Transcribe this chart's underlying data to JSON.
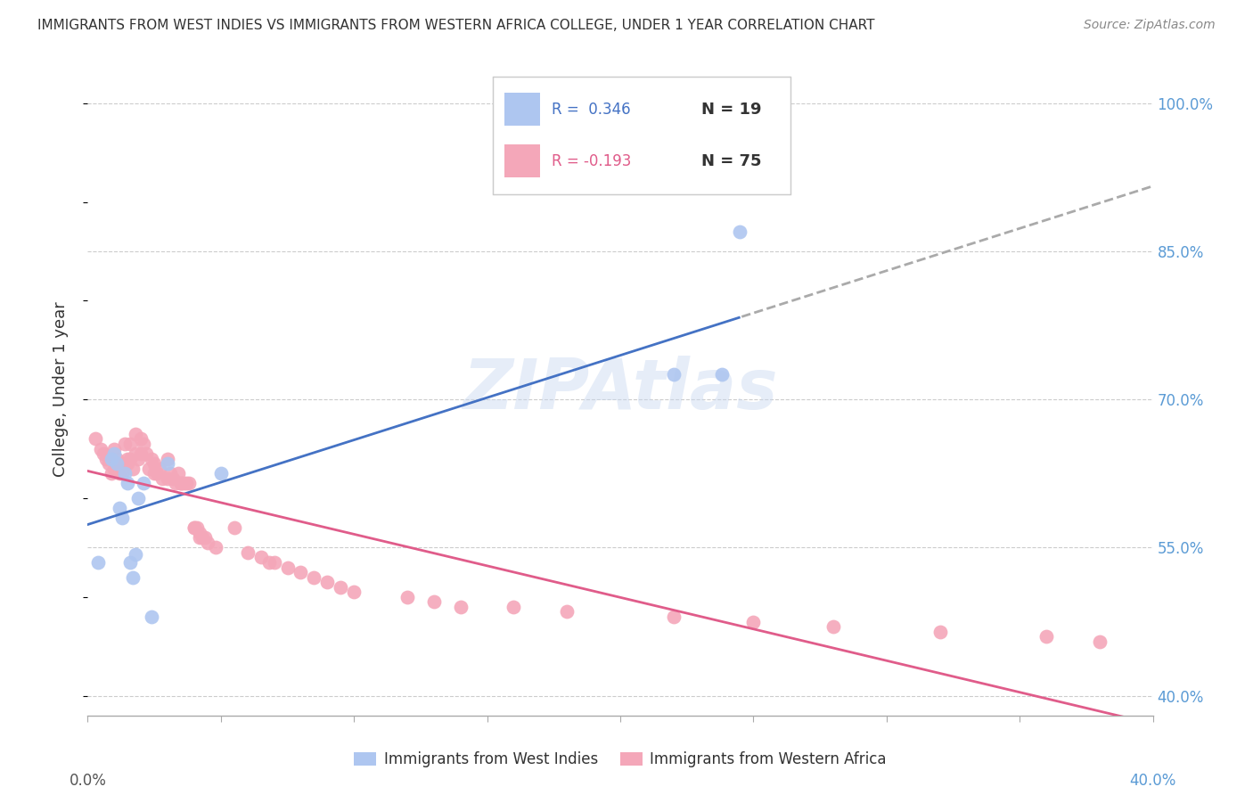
{
  "title": "IMMIGRANTS FROM WEST INDIES VS IMMIGRANTS FROM WESTERN AFRICA COLLEGE, UNDER 1 YEAR CORRELATION CHART",
  "source": "Source: ZipAtlas.com",
  "ylabel": "College, Under 1 year",
  "ylabel_right_ticks": [
    "100.0%",
    "85.0%",
    "70.0%",
    "55.0%",
    "40.0%"
  ],
  "ylabel_right_values": [
    1.0,
    0.85,
    0.7,
    0.55,
    0.4
  ],
  "xmin": 0.0,
  "xmax": 0.4,
  "ymin": 0.38,
  "ymax": 1.04,
  "legend_blue_r": "R =  0.346",
  "legend_blue_n": "N = 19",
  "legend_pink_r": "R = -0.193",
  "legend_pink_n": "N = 75",
  "legend_label_blue": "Immigrants from West Indies",
  "legend_label_pink": "Immigrants from Western Africa",
  "blue_color": "#aec6f0",
  "pink_color": "#f4a7b9",
  "blue_line_color": "#4472c4",
  "pink_line_color": "#e05c8a",
  "west_indies_x": [
    0.004,
    0.009,
    0.01,
    0.011,
    0.012,
    0.013,
    0.014,
    0.015,
    0.016,
    0.017,
    0.018,
    0.019,
    0.021,
    0.024,
    0.03,
    0.05,
    0.22,
    0.238,
    0.245
  ],
  "west_indies_y": [
    0.535,
    0.64,
    0.645,
    0.635,
    0.59,
    0.58,
    0.625,
    0.615,
    0.535,
    0.52,
    0.543,
    0.6,
    0.615,
    0.48,
    0.635,
    0.625,
    0.725,
    0.725,
    0.87
  ],
  "western_africa_x": [
    0.003,
    0.005,
    0.006,
    0.007,
    0.008,
    0.009,
    0.01,
    0.01,
    0.011,
    0.012,
    0.012,
    0.013,
    0.013,
    0.014,
    0.015,
    0.015,
    0.016,
    0.016,
    0.017,
    0.018,
    0.018,
    0.019,
    0.02,
    0.02,
    0.021,
    0.022,
    0.023,
    0.024,
    0.025,
    0.025,
    0.026,
    0.027,
    0.028,
    0.03,
    0.03,
    0.031,
    0.032,
    0.033,
    0.034,
    0.035,
    0.035,
    0.036,
    0.037,
    0.038,
    0.04,
    0.04,
    0.041,
    0.042,
    0.042,
    0.043,
    0.044,
    0.045,
    0.048,
    0.055,
    0.06,
    0.065,
    0.068,
    0.07,
    0.075,
    0.08,
    0.085,
    0.09,
    0.095,
    0.1,
    0.12,
    0.13,
    0.14,
    0.16,
    0.18,
    0.22,
    0.25,
    0.28,
    0.32,
    0.36,
    0.38
  ],
  "western_africa_y": [
    0.66,
    0.65,
    0.645,
    0.64,
    0.635,
    0.625,
    0.65,
    0.63,
    0.64,
    0.63,
    0.625,
    0.635,
    0.625,
    0.655,
    0.64,
    0.635,
    0.655,
    0.64,
    0.63,
    0.665,
    0.645,
    0.64,
    0.66,
    0.645,
    0.655,
    0.645,
    0.63,
    0.64,
    0.635,
    0.625,
    0.625,
    0.63,
    0.62,
    0.64,
    0.62,
    0.625,
    0.62,
    0.615,
    0.625,
    0.615,
    0.615,
    0.615,
    0.615,
    0.615,
    0.57,
    0.57,
    0.57,
    0.565,
    0.56,
    0.56,
    0.56,
    0.555,
    0.55,
    0.57,
    0.545,
    0.54,
    0.535,
    0.535,
    0.53,
    0.525,
    0.52,
    0.515,
    0.51,
    0.505,
    0.5,
    0.495,
    0.49,
    0.49,
    0.485,
    0.48,
    0.475,
    0.47,
    0.465,
    0.46,
    0.455
  ]
}
